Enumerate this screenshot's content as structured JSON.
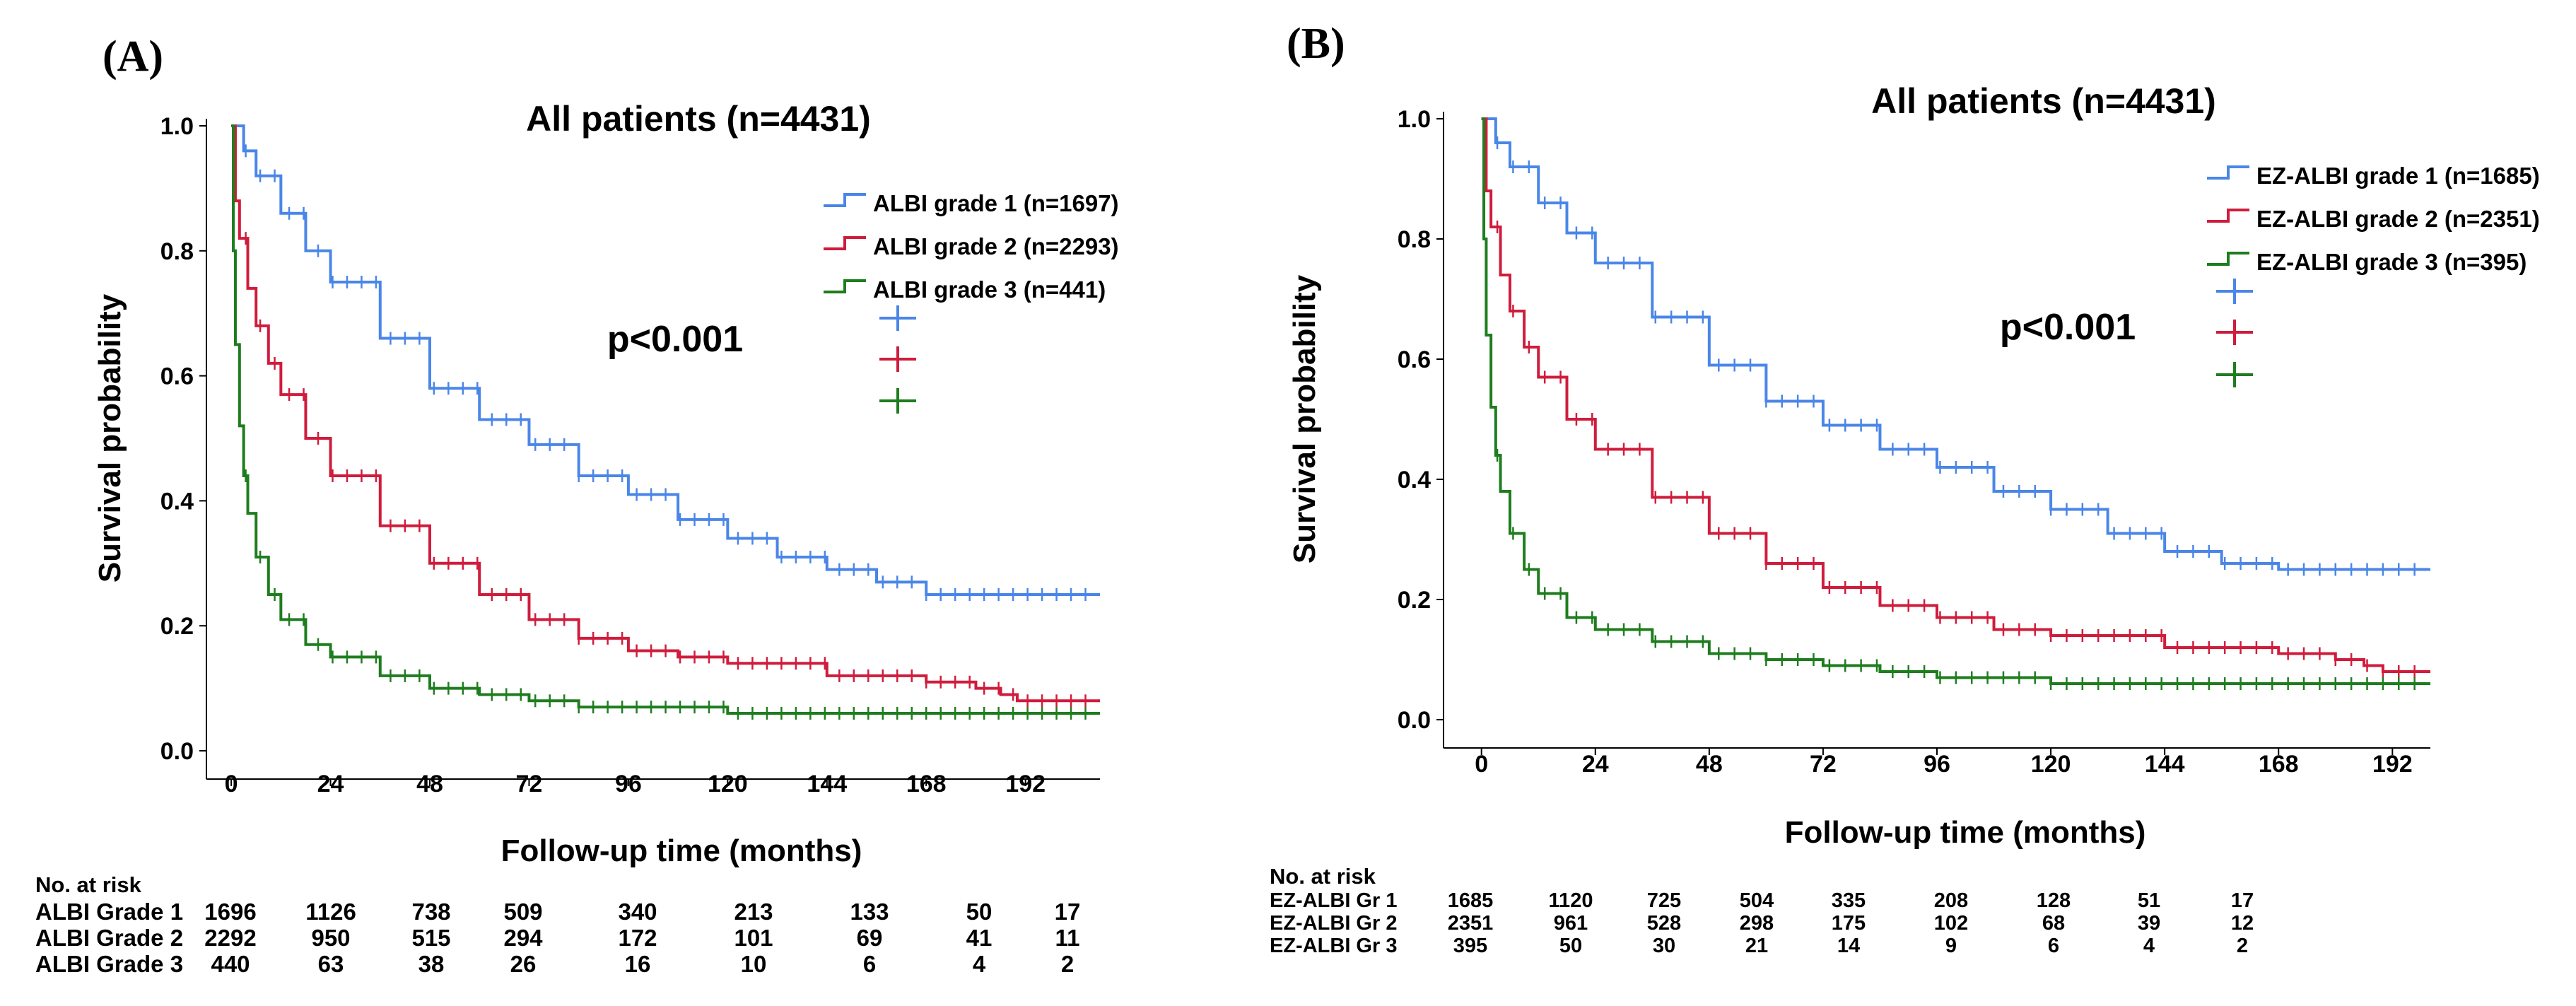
{
  "colors": {
    "grade1": "#4a86e8",
    "grade2": "#d01c3c",
    "grade3": "#1e7d1e"
  },
  "chart_data": [
    {
      "type": "line",
      "panel": "(A)",
      "title": "All patients (n=4431)",
      "xlabel": "Follow-up time (months)",
      "ylabel": "Survival probability",
      "xticks": [
        0,
        24,
        48,
        72,
        96,
        120,
        144,
        168,
        192
      ],
      "yticks": [
        "0.0",
        "0.2",
        "0.4",
        "0.6",
        "0.8",
        "1.0"
      ],
      "xlim": [
        -6,
        210
      ],
      "ylim": [
        0,
        1
      ],
      "annotation": "p<0.001",
      "series": [
        {
          "name": "ALBI grade 1 (n=1697)",
          "x": [
            0,
            3,
            6,
            12,
            18,
            24,
            36,
            48,
            60,
            72,
            84,
            96,
            108,
            120,
            132,
            144,
            156,
            168,
            180,
            192,
            210
          ],
          "y": [
            1.0,
            0.96,
            0.92,
            0.86,
            0.8,
            0.75,
            0.66,
            0.58,
            0.53,
            0.49,
            0.44,
            0.41,
            0.37,
            0.34,
            0.31,
            0.29,
            0.27,
            0.25,
            0.25,
            0.25,
            0.25
          ]
        },
        {
          "name": "ALBI grade 2 (n=2293)",
          "x": [
            0,
            1,
            2,
            4,
            6,
            9,
            12,
            18,
            24,
            36,
            48,
            60,
            72,
            84,
            96,
            108,
            120,
            144,
            168,
            180,
            186,
            190,
            210
          ],
          "y": [
            1.0,
            0.88,
            0.82,
            0.74,
            0.68,
            0.62,
            0.57,
            0.5,
            0.44,
            0.36,
            0.3,
            0.25,
            0.21,
            0.18,
            0.16,
            0.15,
            0.14,
            0.12,
            0.11,
            0.1,
            0.09,
            0.08,
            0.08
          ]
        },
        {
          "name": "ALBI grade 3 (n=441)",
          "x": [
            0,
            0.5,
            1,
            2,
            3,
            4,
            6,
            9,
            12,
            18,
            24,
            36,
            48,
            60,
            72,
            84,
            96,
            120,
            144,
            168,
            192,
            210
          ],
          "y": [
            1.0,
            0.8,
            0.65,
            0.52,
            0.44,
            0.38,
            0.31,
            0.25,
            0.21,
            0.17,
            0.15,
            0.12,
            0.1,
            0.09,
            0.08,
            0.07,
            0.07,
            0.06,
            0.06,
            0.06,
            0.06,
            0.06
          ]
        }
      ],
      "risk_table": {
        "header": "No. at risk",
        "rows": [
          {
            "label": "ALBI Grade 1",
            "values": [
              "1696",
              "1126",
              "738",
              "509",
              "340",
              "213",
              "133",
              "50",
              "17"
            ]
          },
          {
            "label": "ALBI Grade 2",
            "values": [
              "2292",
              "950",
              "515",
              "294",
              "172",
              "101",
              "69",
              "41",
              "11"
            ]
          },
          {
            "label": "ALBI Grade 3",
            "values": [
              "440",
              "63",
              "38",
              "26",
              "16",
              "10",
              "6",
              "4",
              "2"
            ]
          }
        ]
      }
    },
    {
      "type": "line",
      "panel": "(B)",
      "title": "All patients (n=4431)",
      "xlabel": "Follow-up time (months)",
      "ylabel": "Survival probability",
      "xticks": [
        0,
        24,
        48,
        72,
        96,
        120,
        144,
        168,
        192
      ],
      "yticks": [
        "0.0",
        "0.2",
        "0.4",
        "0.6",
        "0.8",
        "1.0"
      ],
      "xlim": [
        -8,
        200
      ],
      "ylim": [
        0,
        1
      ],
      "annotation": "p<0.001",
      "series": [
        {
          "name": "EZ-ALBI grade 1 (n=1685)",
          "x": [
            0,
            3,
            6,
            12,
            18,
            24,
            36,
            48,
            60,
            72,
            84,
            96,
            108,
            120,
            132,
            144,
            156,
            168,
            180,
            192,
            200
          ],
          "y": [
            1.0,
            0.96,
            0.92,
            0.86,
            0.81,
            0.76,
            0.67,
            0.59,
            0.53,
            0.49,
            0.45,
            0.42,
            0.38,
            0.35,
            0.31,
            0.28,
            0.26,
            0.25,
            0.25,
            0.25,
            0.25
          ]
        },
        {
          "name": "EZ-ALBI grade 2 (n=2351)",
          "x": [
            0,
            1,
            2,
            4,
            6,
            9,
            12,
            18,
            24,
            36,
            48,
            60,
            72,
            84,
            96,
            108,
            120,
            144,
            168,
            180,
            186,
            190,
            200
          ],
          "y": [
            1.0,
            0.88,
            0.82,
            0.74,
            0.68,
            0.62,
            0.57,
            0.5,
            0.45,
            0.37,
            0.31,
            0.26,
            0.22,
            0.19,
            0.17,
            0.15,
            0.14,
            0.12,
            0.11,
            0.1,
            0.09,
            0.08,
            0.08
          ]
        },
        {
          "name": "EZ-ALBI grade 3 (n=395)",
          "x": [
            0,
            0.5,
            1,
            2,
            3,
            4,
            6,
            9,
            12,
            18,
            24,
            36,
            48,
            60,
            72,
            84,
            96,
            120,
            144,
            168,
            192,
            200
          ],
          "y": [
            1.0,
            0.8,
            0.64,
            0.52,
            0.44,
            0.38,
            0.31,
            0.25,
            0.21,
            0.17,
            0.15,
            0.13,
            0.11,
            0.1,
            0.09,
            0.08,
            0.07,
            0.06,
            0.06,
            0.06,
            0.06,
            0.06
          ]
        }
      ],
      "risk_table": {
        "header": "No. at risk",
        "rows": [
          {
            "label": "EZ-ALBI Gr 1",
            "values": [
              "1685",
              "1120",
              "725",
              "504",
              "335",
              "208",
              "128",
              "51",
              "17"
            ]
          },
          {
            "label": "EZ-ALBI Gr 2",
            "values": [
              "2351",
              "961",
              "528",
              "298",
              "175",
              "102",
              "68",
              "39",
              "12"
            ]
          },
          {
            "label": "EZ-ALBI Gr 3",
            "values": [
              "395",
              "50",
              "30",
              "21",
              "14",
              "9",
              "6",
              "4",
              "2"
            ]
          }
        ]
      }
    }
  ]
}
